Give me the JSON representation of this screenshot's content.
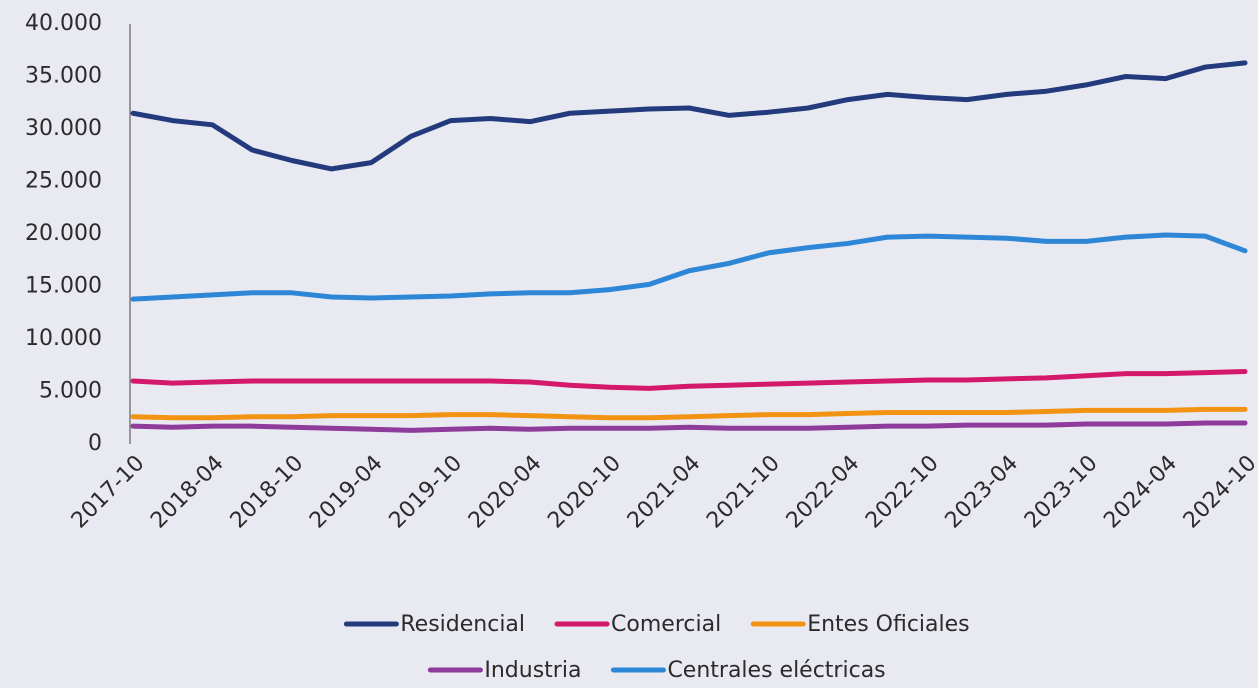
{
  "chart_data": {
    "type": "line",
    "categories": [
      "2017-10",
      null,
      "2018-04",
      null,
      "2018-10",
      null,
      "2019-04",
      null,
      "2019-10",
      null,
      "2020-04",
      null,
      "2020-10",
      null,
      "2021-04",
      null,
      "2021-10",
      null,
      "2022-04",
      null,
      "2022-10",
      null,
      "2023-04",
      null,
      "2023-10",
      null,
      "2024-04",
      null,
      "2024-10"
    ],
    "series": [
      {
        "name": "Residencial",
        "color": "#233a7d",
        "values": [
          31500,
          30800,
          30400,
          28000,
          27000,
          26200,
          26800,
          29300,
          30800,
          31000,
          30700,
          31500,
          31700,
          31900,
          32000,
          31300,
          31600,
          32000,
          32800,
          33300,
          33000,
          32800,
          33300,
          33600,
          34200,
          35000,
          34800,
          35900,
          36300
        ]
      },
      {
        "name": "Comercial",
        "color": "#d4186c",
        "values": [
          6000,
          5800,
          5900,
          6000,
          6000,
          6000,
          6000,
          6000,
          6000,
          6000,
          5900,
          5600,
          5400,
          5300,
          5500,
          5600,
          5700,
          5800,
          5900,
          6000,
          6100,
          6100,
          6200,
          6300,
          6500,
          6700,
          6700,
          6800,
          6900
        ]
      },
      {
        "name": "Entes Oficiales",
        "color": "#f39314",
        "values": [
          2600,
          2500,
          2500,
          2600,
          2600,
          2700,
          2700,
          2700,
          2800,
          2800,
          2700,
          2600,
          2500,
          2500,
          2600,
          2700,
          2800,
          2800,
          2900,
          3000,
          3000,
          3000,
          3000,
          3100,
          3200,
          3200,
          3200,
          3300,
          3300
        ]
      },
      {
        "name": "Industria",
        "color": "#8e3b9c",
        "values": [
          1700,
          1600,
          1700,
          1700,
          1600,
          1500,
          1400,
          1300,
          1400,
          1500,
          1400,
          1500,
          1500,
          1500,
          1600,
          1500,
          1500,
          1500,
          1600,
          1700,
          1700,
          1800,
          1800,
          1800,
          1900,
          1900,
          1900,
          2000,
          2000
        ]
      },
      {
        "name": "Centrales eléctricas",
        "color": "#2d86d6",
        "values": [
          13800,
          14000,
          14200,
          14400,
          14400,
          14000,
          13900,
          14000,
          14100,
          14300,
          14400,
          14400,
          14700,
          15200,
          16500,
          17200,
          18200,
          18700,
          19100,
          19700,
          19800,
          19700,
          19600,
          19300,
          19300,
          19700,
          19900,
          19800,
          18400
        ]
      }
    ],
    "ylim": [
      0,
      40000
    ],
    "yticks": [
      0,
      {
        "value": 5000,
        "label": "5.000"
      },
      {
        "value": 10000,
        "label": "10.000"
      },
      {
        "value": 15000,
        "label": "15.000"
      },
      {
        "value": 20000,
        "label": "20.000"
      },
      {
        "value": 25000,
        "label": "25.000"
      },
      {
        "value": 30000,
        "label": "30.000"
      },
      {
        "value": 35000,
        "label": "35.000"
      },
      {
        "value": 40000,
        "label": "40.000"
      }
    ],
    "grid": false,
    "legend": "bottom"
  }
}
